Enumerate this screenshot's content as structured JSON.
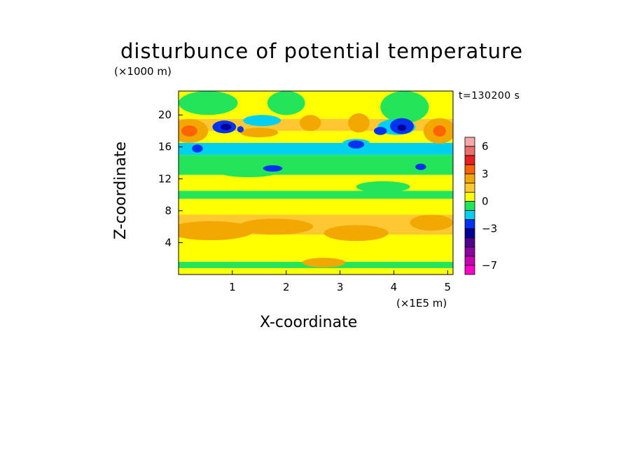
{
  "chart_data": {
    "type": "heatmap",
    "title": "disturbunce of potential temperature",
    "time_label": "t=130200 s",
    "xlabel": "X-coordinate",
    "ylabel": "Z-coordinate",
    "x_scale_label": "(×1E5 m)",
    "y_scale_label": "(×1000 m)",
    "x_range": [
      0,
      5.1
    ],
    "y_range": [
      0,
      23
    ],
    "x_ticks": [
      1,
      2,
      3,
      4,
      5
    ],
    "y_ticks": [
      4,
      8,
      12,
      16,
      20
    ],
    "colorbar": {
      "tick_labels": [
        {
          "label": "6",
          "value": 6
        },
        {
          "label": "3",
          "value": 3
        },
        {
          "label": "0",
          "value": 0
        },
        {
          "label": "−3",
          "value": -3
        },
        {
          "label": "−7",
          "value": -7
        }
      ],
      "levels": [
        {
          "min": 6,
          "max": 7,
          "color": "#f4a8a8"
        },
        {
          "min": 5,
          "max": 6,
          "color": "#ee6e6e"
        },
        {
          "min": 4,
          "max": 5,
          "color": "#e62020"
        },
        {
          "min": 3,
          "max": 4,
          "color": "#ff6400"
        },
        {
          "min": 2,
          "max": 3,
          "color": "#f2a800"
        },
        {
          "min": 1,
          "max": 2,
          "color": "#ffc832"
        },
        {
          "min": 0,
          "max": 1,
          "color": "#ffff00"
        },
        {
          "min": -1,
          "max": 0,
          "color": "#22e55a"
        },
        {
          "min": -2,
          "max": -1,
          "color": "#00d0f0"
        },
        {
          "min": -3,
          "max": -2,
          "color": "#0032f0"
        },
        {
          "min": -4,
          "max": -3,
          "color": "#000096"
        },
        {
          "min": -5,
          "max": -4,
          "color": "#50008c"
        },
        {
          "min": -6,
          "max": -5,
          "color": "#8c00a0"
        },
        {
          "min": -7,
          "max": -6,
          "color": "#c800b4"
        },
        {
          "min": -8,
          "max": -7,
          "color": "#ff00c8"
        }
      ]
    },
    "bands": [
      {
        "z": [
          0,
          0.8
        ],
        "value": 0.5
      },
      {
        "z": [
          0.8,
          1.6
        ],
        "value": -0.5
      },
      {
        "z": [
          1.6,
          5
        ],
        "value": 0.5
      },
      {
        "z": [
          5,
          7.5
        ],
        "value": 1.5
      },
      {
        "z": [
          7.5,
          9.5
        ],
        "value": 0.5
      },
      {
        "z": [
          9.5,
          10.5
        ],
        "value": -0.5
      },
      {
        "z": [
          10.5,
          12.5
        ],
        "value": 0.5
      },
      {
        "z": [
          12.5,
          15
        ],
        "value": -0.5
      },
      {
        "z": [
          15,
          16.5
        ],
        "value": -1.5
      },
      {
        "z": [
          16.5,
          18
        ],
        "value": 0.5
      },
      {
        "z": [
          18,
          19.5
        ],
        "value": 1.5
      },
      {
        "z": [
          19.5,
          23
        ],
        "value": 0.5
      }
    ],
    "features": [
      {
        "x": 0.6,
        "z": 5.5,
        "rx": 0.8,
        "rz": 1.2,
        "value": 2.5
      },
      {
        "x": 1.8,
        "z": 6.0,
        "rx": 0.7,
        "rz": 1.0,
        "value": 2.5
      },
      {
        "x": 3.3,
        "z": 5.2,
        "rx": 0.6,
        "rz": 1.0,
        "value": 2.5
      },
      {
        "x": 4.7,
        "z": 6.5,
        "rx": 0.4,
        "rz": 1.0,
        "value": 2.5
      },
      {
        "x": 2.7,
        "z": 1.5,
        "rx": 0.4,
        "rz": 0.6,
        "value": 2.5
      },
      {
        "x": 1.3,
        "z": 13.0,
        "rx": 0.6,
        "rz": 0.8,
        "value": -0.5
      },
      {
        "x": 3.8,
        "z": 11.0,
        "rx": 0.5,
        "rz": 0.7,
        "value": -0.5
      },
      {
        "x": 0.2,
        "z": 18.0,
        "rx": 0.35,
        "rz": 1.5,
        "value": 2.5
      },
      {
        "x": 0.2,
        "z": 18.0,
        "rx": 0.15,
        "rz": 0.7,
        "value": 3.5
      },
      {
        "x": 4.85,
        "z": 18.0,
        "rx": 0.3,
        "rz": 1.6,
        "value": 2.5
      },
      {
        "x": 4.85,
        "z": 18.0,
        "rx": 0.12,
        "rz": 0.7,
        "value": 3.5
      },
      {
        "x": 3.35,
        "z": 19.0,
        "rx": 0.2,
        "rz": 1.2,
        "value": 2.5
      },
      {
        "x": 2.45,
        "z": 19.0,
        "rx": 0.2,
        "rz": 1.0,
        "value": 2.5
      },
      {
        "x": 1.5,
        "z": 17.8,
        "rx": 0.35,
        "rz": 0.6,
        "value": 2.5
      },
      {
        "x": 0.55,
        "z": 21.5,
        "rx": 0.55,
        "rz": 1.5,
        "value": -0.5
      },
      {
        "x": 2.0,
        "z": 21.5,
        "rx": 0.35,
        "rz": 1.5,
        "value": -0.5
      },
      {
        "x": 4.2,
        "z": 21.0,
        "rx": 0.45,
        "rz": 2.0,
        "value": -0.5
      },
      {
        "x": 1.55,
        "z": 19.3,
        "rx": 0.35,
        "rz": 0.7,
        "value": -1.5
      },
      {
        "x": 4.05,
        "z": 18.5,
        "rx": 0.35,
        "rz": 1.0,
        "value": -1.5
      },
      {
        "x": 0.4,
        "z": 15.8,
        "rx": 0.3,
        "rz": 0.6,
        "value": -1.5
      },
      {
        "x": 3.3,
        "z": 16.5,
        "rx": 0.25,
        "rz": 0.5,
        "value": -1.5
      },
      {
        "x": 0.85,
        "z": 18.5,
        "rx": 0.22,
        "rz": 0.8,
        "value": -2.5
      },
      {
        "x": 0.88,
        "z": 18.5,
        "rx": 0.1,
        "rz": 0.4,
        "value": -3.5
      },
      {
        "x": 4.15,
        "z": 18.6,
        "rx": 0.22,
        "rz": 1.0,
        "value": -2.5
      },
      {
        "x": 4.15,
        "z": 18.4,
        "rx": 0.08,
        "rz": 0.4,
        "value": -3.5
      },
      {
        "x": 0.35,
        "z": 15.8,
        "rx": 0.1,
        "rz": 0.5,
        "value": -2.5
      },
      {
        "x": 1.75,
        "z": 13.3,
        "rx": 0.18,
        "rz": 0.4,
        "value": -2.5
      },
      {
        "x": 3.3,
        "z": 16.3,
        "rx": 0.15,
        "rz": 0.5,
        "value": -2.5
      },
      {
        "x": 3.75,
        "z": 18.0,
        "rx": 0.12,
        "rz": 0.5,
        "value": -2.5
      },
      {
        "x": 4.5,
        "z": 13.5,
        "rx": 0.1,
        "rz": 0.4,
        "value": -2.5
      },
      {
        "x": 1.15,
        "z": 18.2,
        "rx": 0.06,
        "rz": 0.4,
        "value": -2.5
      }
    ]
  }
}
